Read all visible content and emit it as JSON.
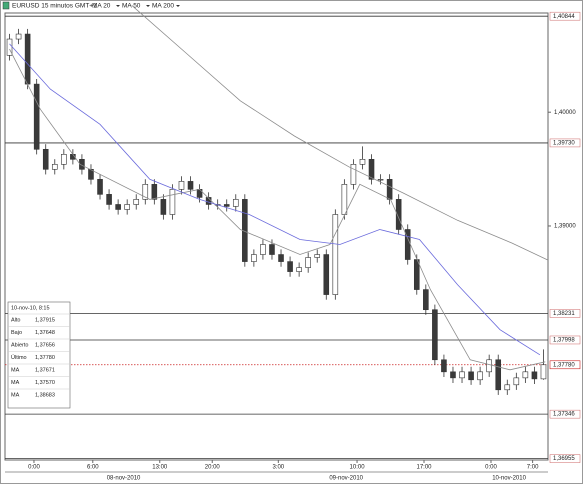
{
  "chart_data": {
    "type": "candlestick",
    "title": "EURUSD 15 minutos GMT+1",
    "color_up": "#ffffff",
    "color_down": "#3a3a3a",
    "open": [
      1.405,
      1.40643,
      1.40687,
      1.40247,
      1.39674,
      1.39498,
      1.39542,
      1.3963,
      1.39586,
      1.39498,
      1.3941,
      1.39278,
      1.39189,
      1.39145,
      1.39189,
      1.39234,
      1.39366,
      1.39234,
      1.39101,
      1.39322,
      1.39392,
      1.39322,
      1.39251,
      1.39189,
      1.39189,
      1.39172,
      1.39234,
      1.38687,
      1.38749,
      1.38837,
      1.38749,
      1.38687,
      1.38599,
      1.38634,
      1.38723,
      1.38749,
      1.38397,
      1.39101,
      1.39366,
      1.39542,
      1.39586,
      1.3941,
      1.3941,
      1.39234,
      1.38969,
      1.38705,
      1.38441,
      1.38264,
      1.37824,
      1.37718,
      1.37665,
      1.37718,
      1.37648,
      1.37718,
      1.37824,
      1.3756,
      1.37604,
      1.37665,
      1.37718,
      1.37656
    ],
    "high": [
      1.40688,
      1.40732,
      1.40732,
      1.40292,
      1.39719,
      1.39587,
      1.39675,
      1.39675,
      1.39631,
      1.39543,
      1.39455,
      1.39323,
      1.39234,
      1.39234,
      1.39279,
      1.39411,
      1.39411,
      1.39279,
      1.39367,
      1.39437,
      1.39437,
      1.39367,
      1.39296,
      1.39234,
      1.39234,
      1.39279,
      1.39279,
      1.38794,
      1.38882,
      1.38882,
      1.38794,
      1.38732,
      1.38679,
      1.38768,
      1.38794,
      1.38794,
      1.39146,
      1.39411,
      1.39587,
      1.397,
      1.39631,
      1.39455,
      1.39455,
      1.39279,
      1.39014,
      1.3875,
      1.38486,
      1.38309,
      1.37869,
      1.37763,
      1.37763,
      1.37763,
      1.37763,
      1.37869,
      1.37869,
      1.37649,
      1.3771,
      1.37763,
      1.37763,
      1.37915
    ],
    "low": [
      1.40455,
      1.40598,
      1.40202,
      1.39629,
      1.39453,
      1.39453,
      1.39497,
      1.39541,
      1.39453,
      1.39365,
      1.39233,
      1.39144,
      1.391,
      1.391,
      1.39144,
      1.39189,
      1.39189,
      1.39056,
      1.39056,
      1.39277,
      1.39277,
      1.39206,
      1.39144,
      1.39144,
      1.39127,
      1.39127,
      1.38642,
      1.38642,
      1.38704,
      1.38704,
      1.38642,
      1.38554,
      1.38554,
      1.38589,
      1.38678,
      1.38352,
      1.38352,
      1.39056,
      1.39321,
      1.39497,
      1.39365,
      1.39365,
      1.39189,
      1.38924,
      1.3866,
      1.38396,
      1.38219,
      1.37779,
      1.37673,
      1.3762,
      1.3762,
      1.37603,
      1.37603,
      1.37673,
      1.37515,
      1.37515,
      1.37559,
      1.3762,
      1.37611,
      1.37648
    ],
    "close": [
      1.40643,
      1.40687,
      1.40247,
      1.39674,
      1.39498,
      1.39542,
      1.3963,
      1.39586,
      1.39498,
      1.3941,
      1.39278,
      1.39189,
      1.39145,
      1.39189,
      1.39234,
      1.39366,
      1.39234,
      1.39101,
      1.39322,
      1.39392,
      1.39322,
      1.39251,
      1.39189,
      1.39189,
      1.39172,
      1.39234,
      1.38687,
      1.38749,
      1.38837,
      1.38749,
      1.38687,
      1.38599,
      1.38634,
      1.38723,
      1.38749,
      1.38397,
      1.39101,
      1.39366,
      1.39542,
      1.39586,
      1.3941,
      1.3941,
      1.39234,
      1.38969,
      1.38705,
      1.38441,
      1.38264,
      1.37824,
      1.37718,
      1.37665,
      1.37718,
      1.37648,
      1.37718,
      1.37824,
      1.3756,
      1.37604,
      1.37665,
      1.37718,
      1.37656,
      1.3778
    ],
    "series": [
      {
        "name": "MA 20",
        "color": "#8c8c8c",
        "x": [
          0.5,
          3.9,
          8.3,
          16,
          21.5,
          26,
          32.6,
          35.9,
          39.2,
          42.6,
          47,
          51.4,
          55.8,
          59.7
        ],
        "values": [
          1.40555,
          1.40026,
          1.39542,
          1.39234,
          1.39322,
          1.38969,
          1.38749,
          1.38837,
          1.39366,
          1.39234,
          1.38441,
          1.37824,
          1.37736,
          1.37806
        ]
      },
      {
        "name": "MA 50",
        "color": "#6a6adc",
        "x": [
          0.5,
          5,
          10.5,
          16,
          21.5,
          27,
          32.6,
          37,
          41.4,
          45.8,
          50,
          54.7,
          59.1
        ],
        "values": [
          1.406,
          1.40203,
          1.39894,
          1.3941,
          1.39234,
          1.39101,
          1.38881,
          1.38837,
          1.38969,
          1.38881,
          1.38485,
          1.38088,
          1.37868
        ]
      },
      {
        "name": "MA 200",
        "color": "#8c8c8c",
        "x": [
          14,
          20,
          26,
          32,
          38,
          44,
          50,
          56,
          60
        ],
        "values": [
          1.4094,
          1.4052,
          1.401,
          1.3979,
          1.3952,
          1.3929,
          1.3905,
          1.3885,
          1.387
        ]
      }
    ],
    "xlim": [
      0,
      60
    ],
    "ylim": [
      1.36943,
      1.40872
    ],
    "yticks": [
      {
        "value": 1.4,
        "label": "1,40000"
      },
      {
        "value": 1.39,
        "label": "1,39000"
      }
    ],
    "xticks": [
      {
        "value": 3.2,
        "label": "0:00"
      },
      {
        "value": 9.7,
        "label": "6:00"
      },
      {
        "value": 17.1,
        "label": "13:00"
      },
      {
        "value": 22.9,
        "label": "20:00"
      },
      {
        "value": 30.2,
        "label": "3:00"
      },
      {
        "value": 38.9,
        "label": "10:00"
      },
      {
        "value": 46.3,
        "label": "17:00"
      },
      {
        "value": 53.7,
        "label": "0:00"
      },
      {
        "value": 58.3,
        "label": "7:00"
      }
    ],
    "xdates": [
      {
        "value": 13.1,
        "label": "08-nov-2010"
      },
      {
        "value": 37.7,
        "label": "09-nov-2010"
      },
      {
        "value": 55.7,
        "label": "10-nov-2010"
      }
    ],
    "levels": [
      {
        "value": 1.40844,
        "label": "1,40844"
      },
      {
        "value": 1.3973,
        "label": "1,39730"
      },
      {
        "value": 1.38231,
        "label": "1,38231"
      },
      {
        "value": 1.37998,
        "label": "1,37998"
      },
      {
        "value": 1.37346,
        "label": "1,37346"
      },
      {
        "value": 1.36955,
        "label": "1,36955"
      }
    ],
    "current": {
      "value": 1.3778,
      "label": "1,37780",
      "color": "#cc2222"
    },
    "info": {
      "title": "10-nov-10, 8:15",
      "rows": [
        [
          "Alto",
          "1,37915"
        ],
        [
          "Bajo",
          "1,37648"
        ],
        [
          "Abierto",
          "1,37656"
        ],
        [
          "Último",
          "1,37780"
        ],
        [
          "MA",
          "1,37671"
        ],
        [
          "MA",
          "1,37570"
        ],
        [
          "MA",
          "1,38683"
        ]
      ]
    }
  }
}
